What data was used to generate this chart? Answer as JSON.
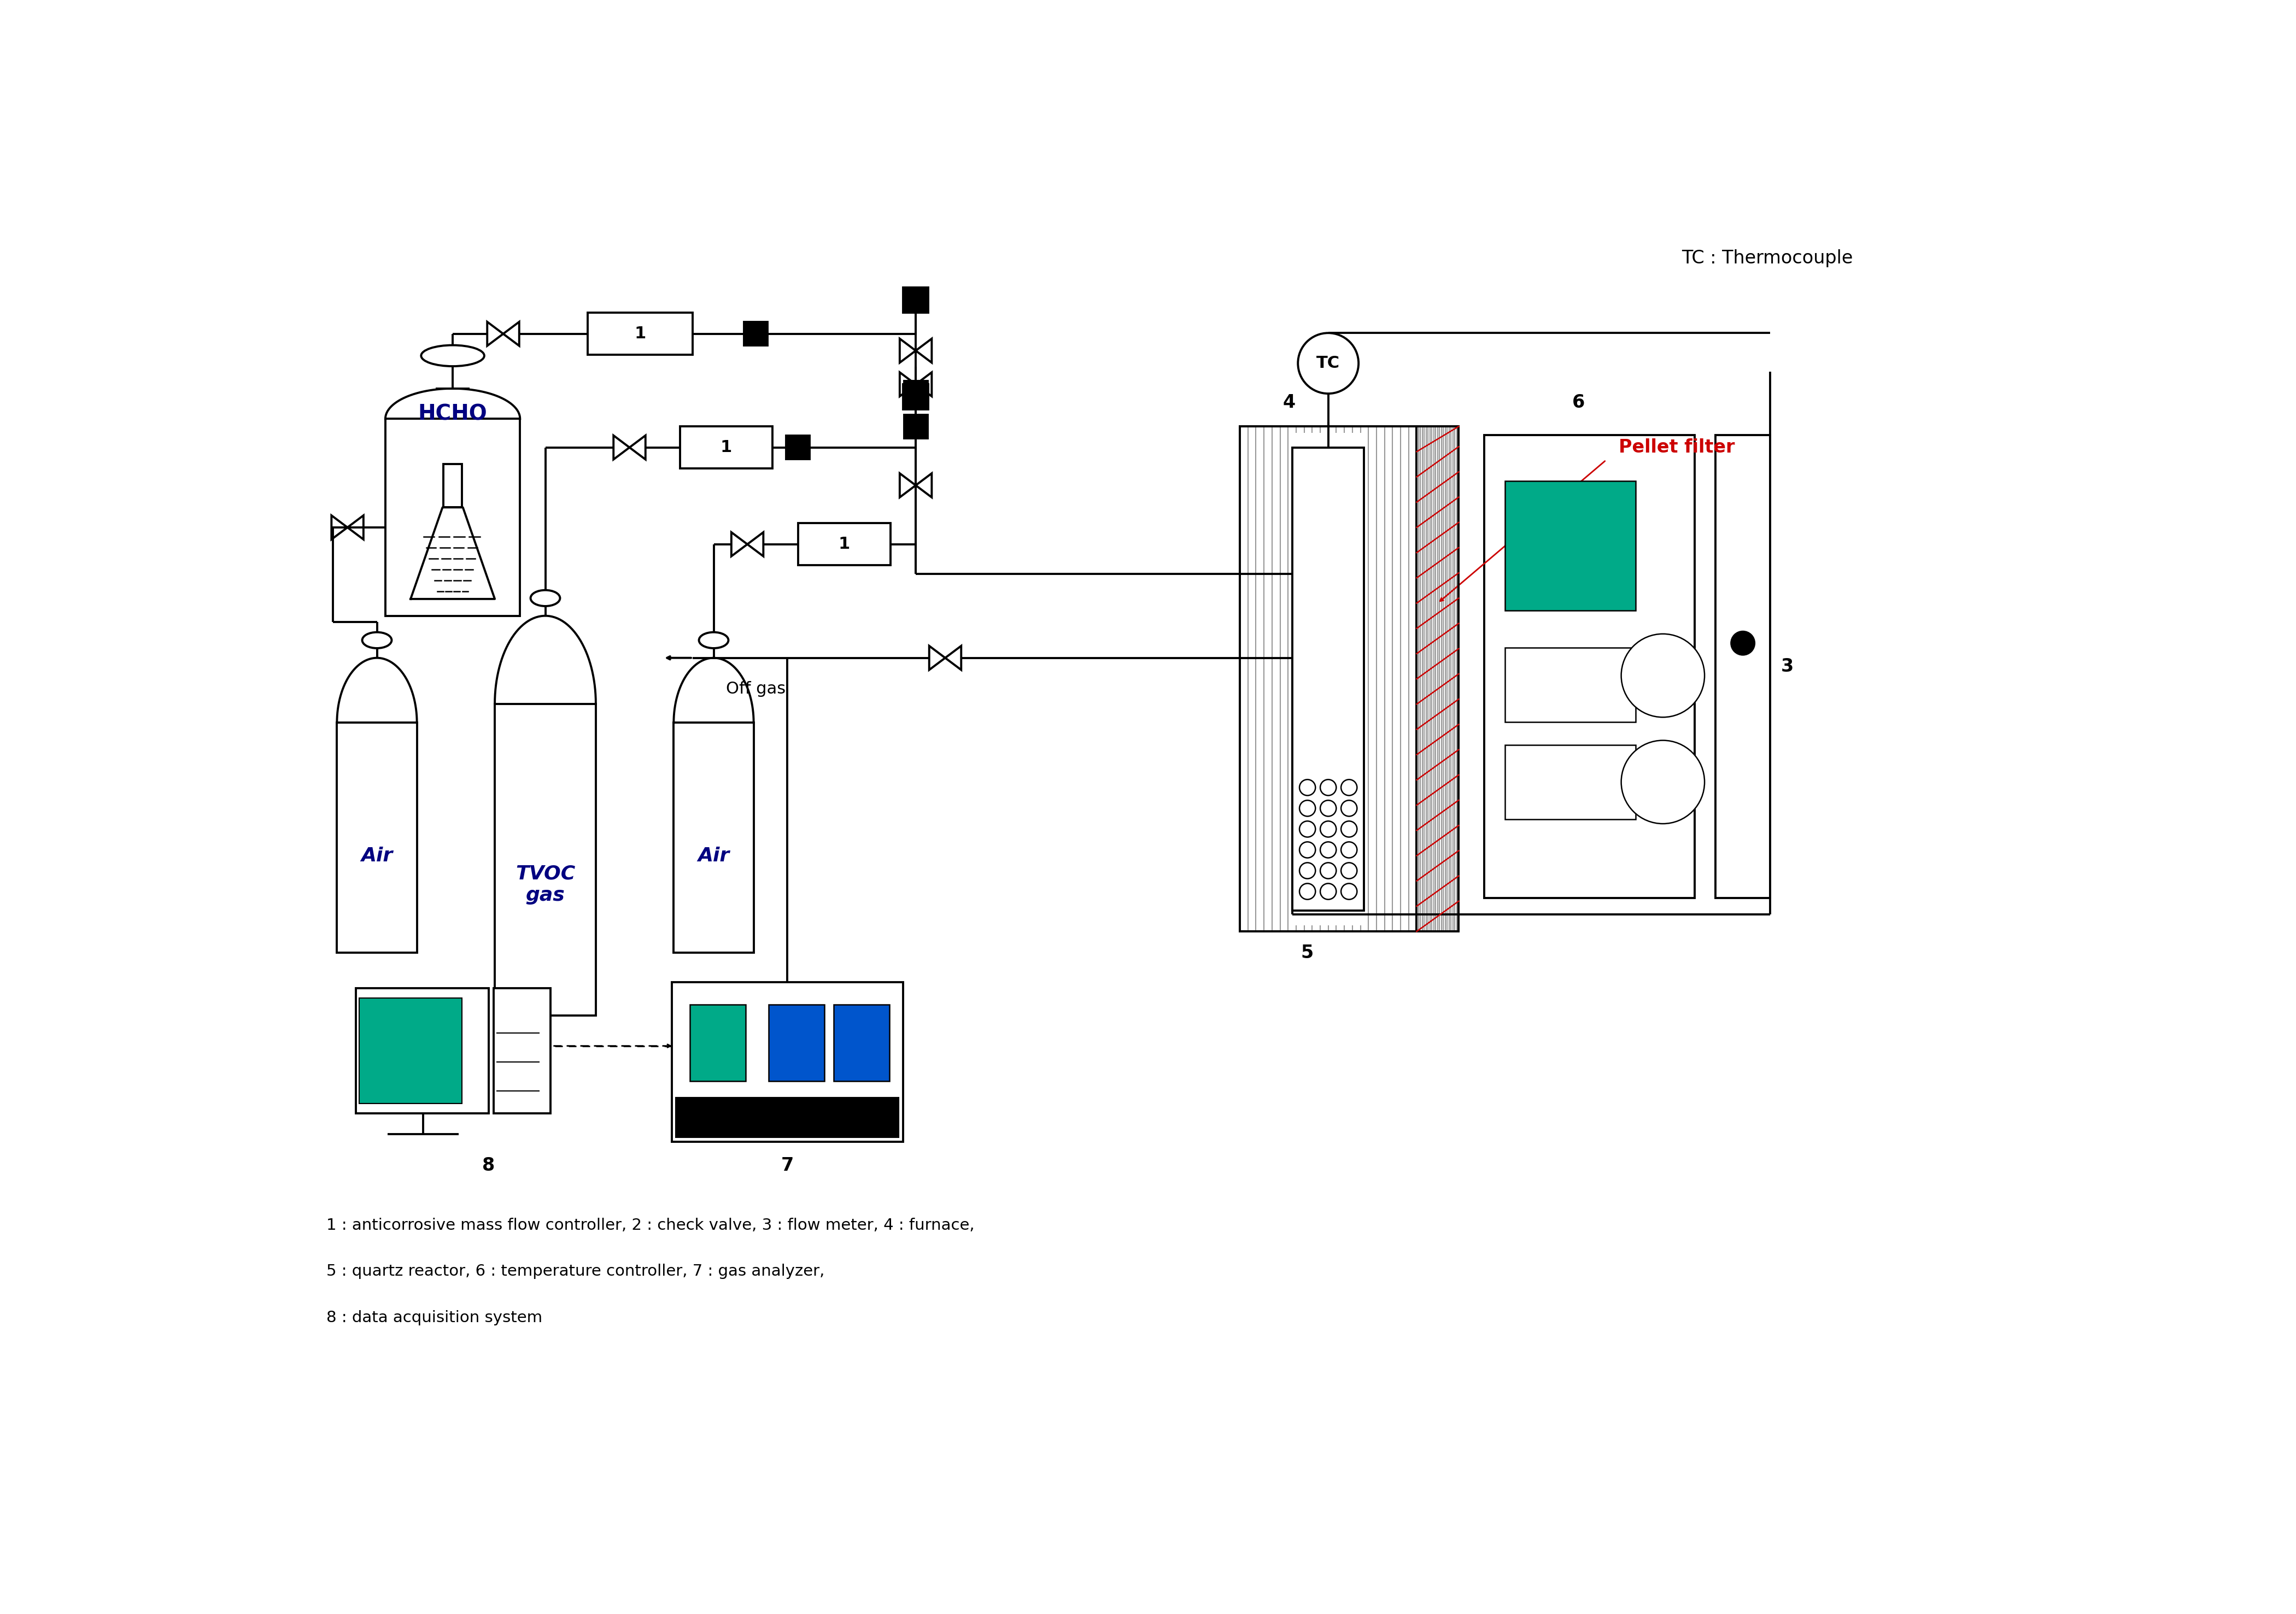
{
  "background_color": "#ffffff",
  "line_color": "#000000",
  "label_color": "#000080",
  "pellet_filter_color": "#cc0000",
  "green_color": "#00aa88",
  "legend_text": "TC : Thermocouple",
  "pellet_filter_text": "Pellet filter",
  "caption_line1": "1 : anticorrosive mass flow controller, 2 : check valve, 3 : flow meter, 4 : furnace,",
  "caption_line2": "5 : quartz reactor, 6 : temperature controller, 7 : gas analyzer,",
  "caption_line3": "8 : data acquisition system"
}
